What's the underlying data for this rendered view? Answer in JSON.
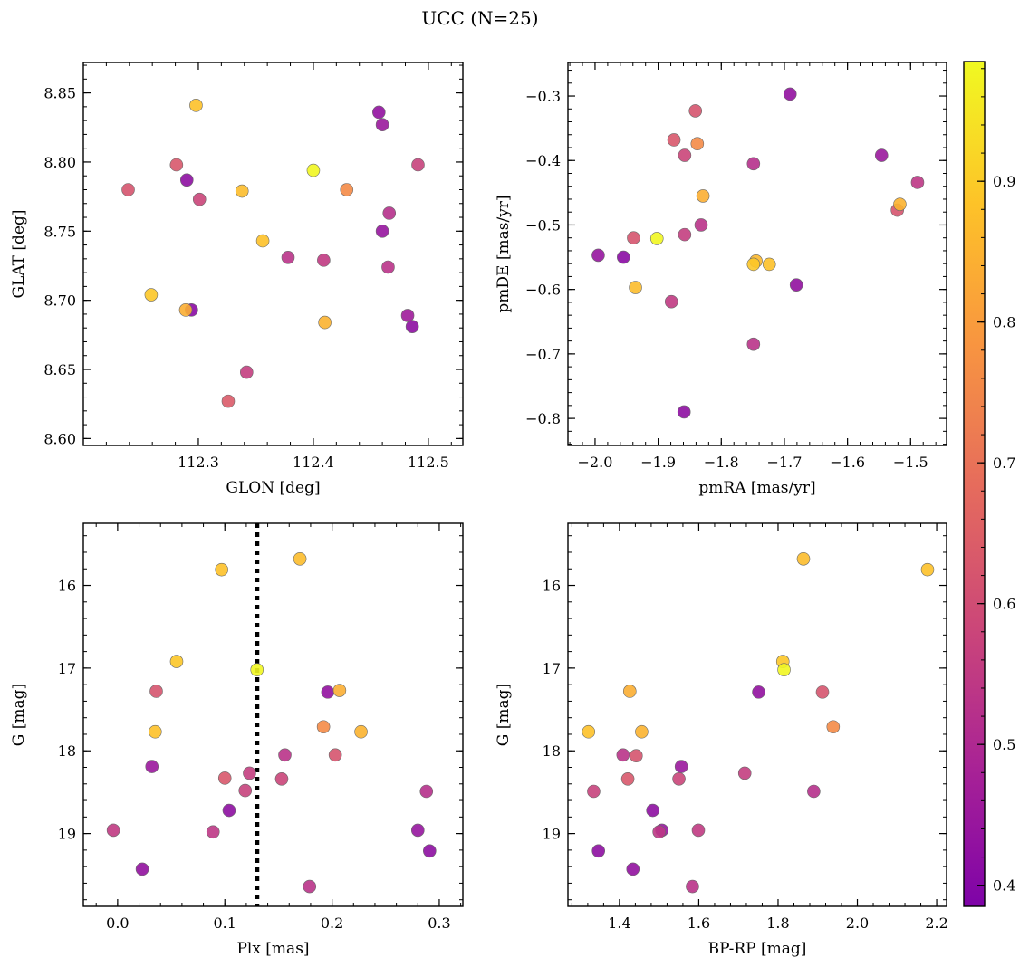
{
  "figure": {
    "suptitle": "UCC (N=25)"
  },
  "colorbar": {
    "colormap": "plasma",
    "range": [
      0.385,
      0.985
    ],
    "ticks": [
      0.4,
      0.5,
      0.6,
      0.7,
      0.8,
      0.9
    ]
  },
  "chart_data": [
    {
      "type": "scatter",
      "xlabel": "GLON [deg]",
      "ylabel": "GLAT [deg]",
      "xlim": [
        112.2,
        112.53
      ],
      "ylim": [
        8.595,
        8.872
      ],
      "xticks": [
        112.3,
        112.4,
        112.5
      ],
      "yticks": [
        8.6,
        8.65,
        8.7,
        8.75,
        8.8,
        8.85
      ],
      "points": [
        {
          "x": 112.239,
          "y": 8.78,
          "c": 0.62
        },
        {
          "x": 112.281,
          "y": 8.798,
          "c": 0.63
        },
        {
          "x": 112.29,
          "y": 8.787,
          "c": 0.42
        },
        {
          "x": 112.298,
          "y": 8.841,
          "c": 0.88
        },
        {
          "x": 112.301,
          "y": 8.773,
          "c": 0.58
        },
        {
          "x": 112.338,
          "y": 8.779,
          "c": 0.87
        },
        {
          "x": 112.356,
          "y": 8.743,
          "c": 0.88
        },
        {
          "x": 112.259,
          "y": 8.704,
          "c": 0.89
        },
        {
          "x": 112.289,
          "y": 8.693,
          "c": 0.84
        },
        {
          "x": 112.294,
          "y": 8.693,
          "c": 0.41
        },
        {
          "x": 112.326,
          "y": 8.627,
          "c": 0.64
        },
        {
          "x": 112.342,
          "y": 8.648,
          "c": 0.56
        },
        {
          "x": 112.378,
          "y": 8.731,
          "c": 0.53
        },
        {
          "x": 112.4,
          "y": 8.794,
          "c": 0.98
        },
        {
          "x": 112.409,
          "y": 8.729,
          "c": 0.55
        },
        {
          "x": 112.41,
          "y": 8.684,
          "c": 0.85
        },
        {
          "x": 112.429,
          "y": 8.78,
          "c": 0.76
        },
        {
          "x": 112.457,
          "y": 8.836,
          "c": 0.43
        },
        {
          "x": 112.46,
          "y": 8.827,
          "c": 0.45
        },
        {
          "x": 112.46,
          "y": 8.75,
          "c": 0.44
        },
        {
          "x": 112.466,
          "y": 8.763,
          "c": 0.52
        },
        {
          "x": 112.465,
          "y": 8.724,
          "c": 0.53
        },
        {
          "x": 112.482,
          "y": 8.689,
          "c": 0.46
        },
        {
          "x": 112.486,
          "y": 8.681,
          "c": 0.42
        },
        {
          "x": 112.491,
          "y": 8.798,
          "c": 0.57
        }
      ]
    },
    {
      "type": "scatter",
      "xlabel": "pmRA [mas/yr]",
      "ylabel": "pmDE [mas/yr]",
      "xlim": [
        -2.043,
        -1.443
      ],
      "ylim": [
        -0.842,
        -0.248
      ],
      "xticks": [
        -2.0,
        -1.9,
        -1.8,
        -1.7,
        -1.6,
        -1.5
      ],
      "xticklabels": [
        "−2.0",
        "−1.9",
        "−1.8",
        "−1.7",
        "−1.6",
        "−1.5"
      ],
      "yticks": [
        -0.8,
        -0.7,
        -0.6,
        -0.5,
        -0.4,
        -0.3
      ],
      "yticklabels": [
        "−0.8",
        "−0.7",
        "−0.6",
        "−0.5",
        "−0.4",
        "−0.3"
      ],
      "points": [
        {
          "x": -1.691,
          "y": -0.297,
          "c": 0.43
        },
        {
          "x": -1.841,
          "y": -0.323,
          "c": 0.62
        },
        {
          "x": -1.875,
          "y": -0.368,
          "c": 0.63
        },
        {
          "x": -1.838,
          "y": -0.374,
          "c": 0.76
        },
        {
          "x": -1.858,
          "y": -0.392,
          "c": 0.58
        },
        {
          "x": -1.749,
          "y": -0.405,
          "c": 0.52
        },
        {
          "x": -1.546,
          "y": -0.392,
          "c": 0.45
        },
        {
          "x": -1.489,
          "y": -0.434,
          "c": 0.54
        },
        {
          "x": -1.829,
          "y": -0.455,
          "c": 0.84
        },
        {
          "x": -1.517,
          "y": -0.468,
          "c": 0.85
        },
        {
          "x": -1.521,
          "y": -0.477,
          "c": 0.62
        },
        {
          "x": -1.832,
          "y": -0.5,
          "c": 0.53
        },
        {
          "x": -1.858,
          "y": -0.515,
          "c": 0.56
        },
        {
          "x": -1.939,
          "y": -0.52,
          "c": 0.62
        },
        {
          "x": -1.902,
          "y": -0.521,
          "c": 0.98
        },
        {
          "x": -1.995,
          "y": -0.547,
          "c": 0.44
        },
        {
          "x": -1.955,
          "y": -0.55,
          "c": 0.41
        },
        {
          "x": -1.745,
          "y": -0.556,
          "c": 0.86
        },
        {
          "x": -1.749,
          "y": -0.561,
          "c": 0.89
        },
        {
          "x": -1.724,
          "y": -0.561,
          "c": 0.88
        },
        {
          "x": -1.936,
          "y": -0.597,
          "c": 0.87
        },
        {
          "x": -1.681,
          "y": -0.593,
          "c": 0.43
        },
        {
          "x": -1.879,
          "y": -0.619,
          "c": 0.55
        },
        {
          "x": -1.749,
          "y": -0.685,
          "c": 0.53
        },
        {
          "x": -1.859,
          "y": -0.79,
          "c": 0.42
        }
      ]
    },
    {
      "type": "scatter",
      "xlabel": "Plx [mas]",
      "ylabel": "G [mag]",
      "xlim": [
        -0.032,
        0.322
      ],
      "ylim": [
        19.88,
        15.25
      ],
      "y_inverted": true,
      "xticks": [
        0.0,
        0.1,
        0.2,
        0.3
      ],
      "xticklabels": [
        "0.0",
        "0.1",
        "0.2",
        "0.3"
      ],
      "yticks": [
        16,
        17,
        18,
        19
      ],
      "vline": {
        "x": 0.13,
        "style": "dotted",
        "color": "#000000"
      },
      "points": [
        {
          "x": 0.17,
          "y": 15.68,
          "c": 0.87
        },
        {
          "x": 0.097,
          "y": 15.81,
          "c": 0.88
        },
        {
          "x": 0.055,
          "y": 16.92,
          "c": 0.89
        },
        {
          "x": 0.13,
          "y": 17.02,
          "c": 0.98
        },
        {
          "x": 0.036,
          "y": 17.28,
          "c": 0.62
        },
        {
          "x": 0.196,
          "y": 17.29,
          "c": 0.43
        },
        {
          "x": 0.207,
          "y": 17.27,
          "c": 0.84
        },
        {
          "x": 0.035,
          "y": 17.77,
          "c": 0.88
        },
        {
          "x": 0.192,
          "y": 17.71,
          "c": 0.76
        },
        {
          "x": 0.227,
          "y": 17.77,
          "c": 0.85
        },
        {
          "x": 0.032,
          "y": 18.19,
          "c": 0.45
        },
        {
          "x": 0.156,
          "y": 18.05,
          "c": 0.53
        },
        {
          "x": 0.203,
          "y": 18.05,
          "c": 0.62
        },
        {
          "x": 0.1,
          "y": 18.33,
          "c": 0.63
        },
        {
          "x": 0.123,
          "y": 18.27,
          "c": 0.56
        },
        {
          "x": 0.153,
          "y": 18.34,
          "c": 0.58
        },
        {
          "x": 0.119,
          "y": 18.48,
          "c": 0.57
        },
        {
          "x": 0.288,
          "y": 18.49,
          "c": 0.52
        },
        {
          "x": 0.104,
          "y": 18.72,
          "c": 0.42
        },
        {
          "x": -0.004,
          "y": 18.96,
          "c": 0.55
        },
        {
          "x": 0.089,
          "y": 18.98,
          "c": 0.54
        },
        {
          "x": 0.28,
          "y": 18.96,
          "c": 0.44
        },
        {
          "x": 0.291,
          "y": 19.21,
          "c": 0.42
        },
        {
          "x": 0.023,
          "y": 19.43,
          "c": 0.43
        },
        {
          "x": 0.179,
          "y": 19.64,
          "c": 0.53
        }
      ]
    },
    {
      "type": "scatter",
      "xlabel": "BP-RP [mag]",
      "ylabel": "G [mag]",
      "xlim": [
        1.27,
        2.225
      ],
      "ylim": [
        19.88,
        15.25
      ],
      "y_inverted": true,
      "xticks": [
        1.4,
        1.6,
        1.8,
        2.0,
        2.2
      ],
      "xticklabels": [
        "1.4",
        "1.6",
        "1.8",
        "2.0",
        "2.2"
      ],
      "yticks": [
        16,
        17,
        18,
        19
      ],
      "points": [
        {
          "x": 1.864,
          "y": 15.68,
          "c": 0.87
        },
        {
          "x": 2.177,
          "y": 15.81,
          "c": 0.88
        },
        {
          "x": 1.812,
          "y": 16.92,
          "c": 0.89
        },
        {
          "x": 1.815,
          "y": 17.02,
          "c": 0.98
        },
        {
          "x": 1.426,
          "y": 17.28,
          "c": 0.84
        },
        {
          "x": 1.751,
          "y": 17.29,
          "c": 0.43
        },
        {
          "x": 1.912,
          "y": 17.29,
          "c": 0.62
        },
        {
          "x": 1.322,
          "y": 17.77,
          "c": 0.88
        },
        {
          "x": 1.456,
          "y": 17.77,
          "c": 0.85
        },
        {
          "x": 1.939,
          "y": 17.71,
          "c": 0.76
        },
        {
          "x": 1.409,
          "y": 18.05,
          "c": 0.53
        },
        {
          "x": 1.442,
          "y": 18.06,
          "c": 0.62
        },
        {
          "x": 1.556,
          "y": 18.19,
          "c": 0.45
        },
        {
          "x": 1.421,
          "y": 18.34,
          "c": 0.63
        },
        {
          "x": 1.55,
          "y": 18.34,
          "c": 0.58
        },
        {
          "x": 1.716,
          "y": 18.27,
          "c": 0.56
        },
        {
          "x": 1.335,
          "y": 18.49,
          "c": 0.57
        },
        {
          "x": 1.89,
          "y": 18.49,
          "c": 0.52
        },
        {
          "x": 1.484,
          "y": 18.72,
          "c": 0.42
        },
        {
          "x": 1.5,
          "y": 18.98,
          "c": 0.54
        },
        {
          "x": 1.507,
          "y": 18.96,
          "c": 0.44
        },
        {
          "x": 1.599,
          "y": 18.96,
          "c": 0.55
        },
        {
          "x": 1.347,
          "y": 19.21,
          "c": 0.42
        },
        {
          "x": 1.434,
          "y": 19.43,
          "c": 0.43
        },
        {
          "x": 1.584,
          "y": 19.64,
          "c": 0.53
        }
      ]
    }
  ]
}
